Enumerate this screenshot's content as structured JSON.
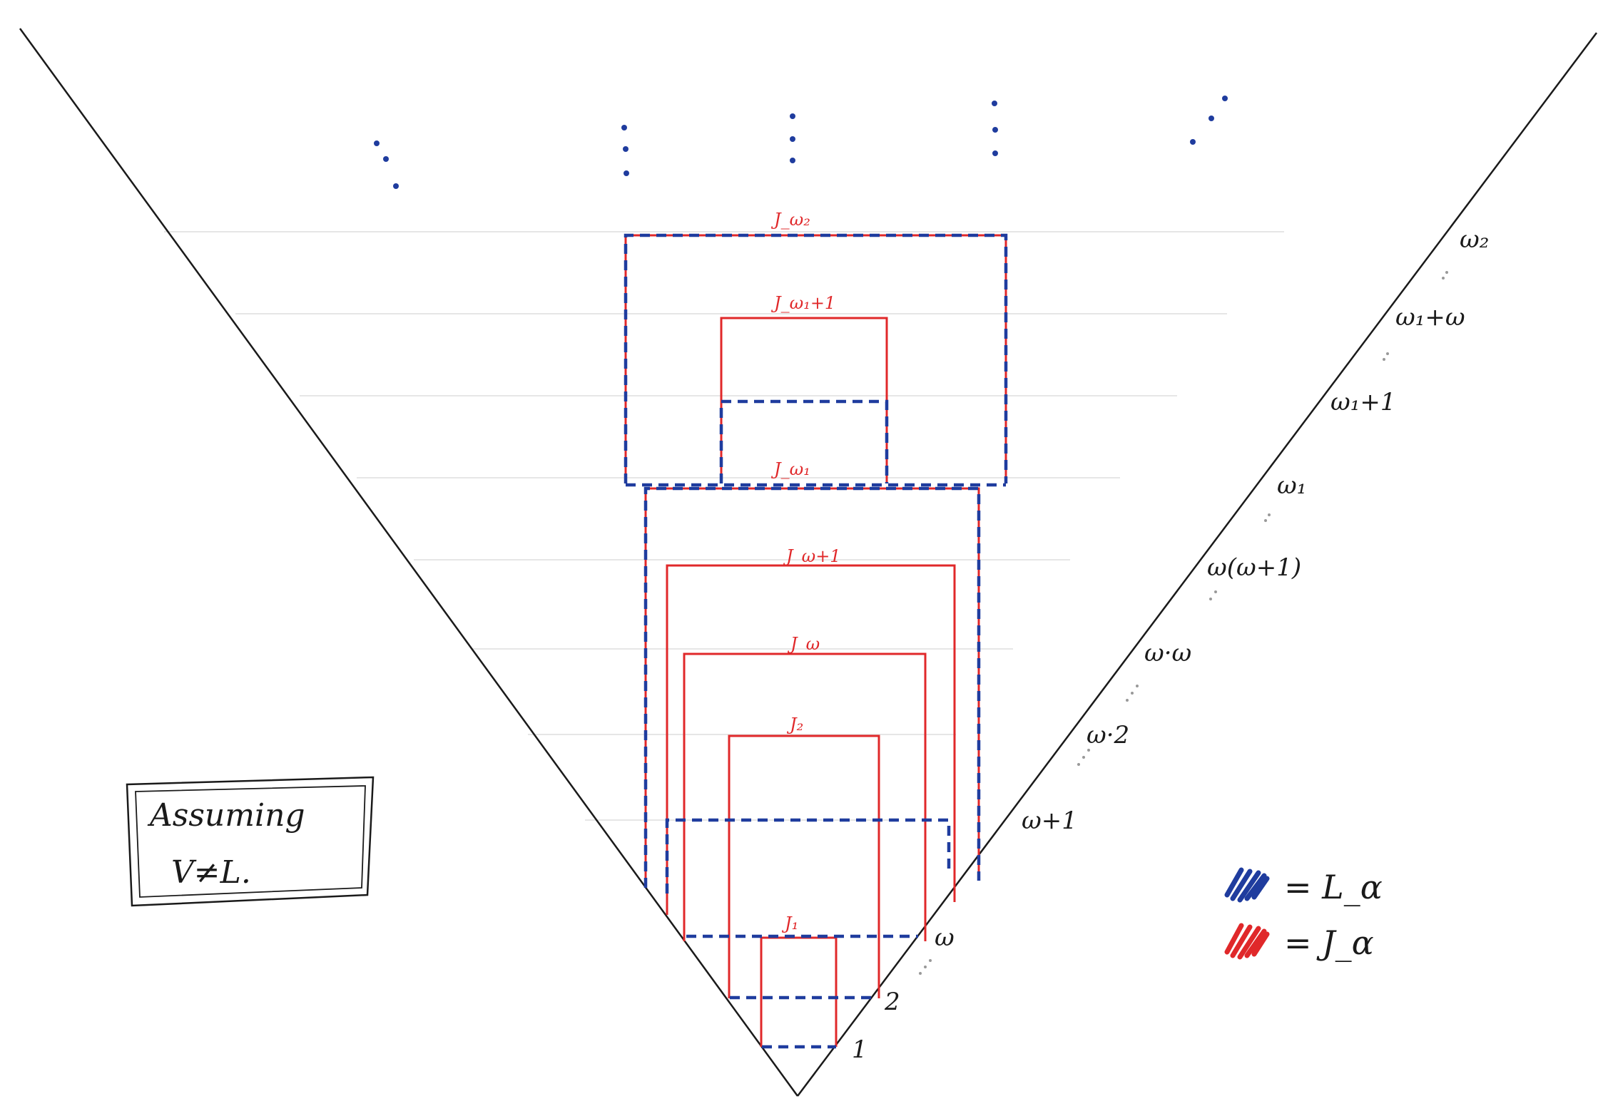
{
  "diagram": {
    "assumption_box": {
      "line1": "Assuming",
      "line2": "V≠L."
    },
    "ordinal_labels": [
      "1",
      "2",
      "ω",
      "ω+1",
      "ω·2",
      "ω·ω",
      "ω(ω+1)",
      "ω₁",
      "ω₁+1",
      "ω₁+ω",
      "ω₂"
    ],
    "j_labels": [
      "J₁",
      "J₂",
      "J_ω",
      "J_ω+1",
      "J_ω₁",
      "J_ω₁+1",
      "J_ω₂"
    ],
    "legend": {
      "items": [
        {
          "text": "= L_α",
          "color": "#1f3c9e"
        },
        {
          "text": "= J_α",
          "color": "#e0282a"
        }
      ]
    },
    "colors": {
      "red": "#e0282a",
      "blue": "#1f3c9e",
      "ink": "#1a1a1a"
    }
  }
}
